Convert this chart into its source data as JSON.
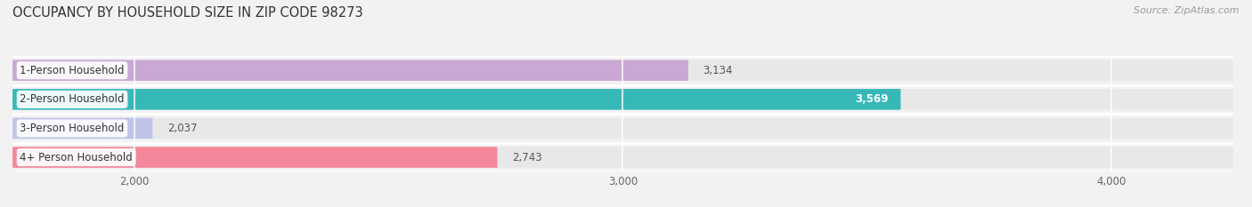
{
  "title": "OCCUPANCY BY HOUSEHOLD SIZE IN ZIP CODE 98273",
  "source": "Source: ZipAtlas.com",
  "categories": [
    "1-Person Household",
    "2-Person Household",
    "3-Person Household",
    "4+ Person Household"
  ],
  "values": [
    3134,
    3569,
    2037,
    2743
  ],
  "bar_colors": [
    "#c9a8d4",
    "#37b8b8",
    "#c0c4e8",
    "#f4879a"
  ],
  "value_labels": [
    "3,134",
    "3,569",
    "2,037",
    "2,743"
  ],
  "value_label_colors": [
    "#555555",
    "#ffffff",
    "#555555",
    "#555555"
  ],
  "value_label_bold": [
    false,
    true,
    false,
    false
  ],
  "xlim": [
    1750,
    4250
  ],
  "xticks": [
    2000,
    3000,
    4000
  ],
  "xtick_labels": [
    "2,000",
    "3,000",
    "4,000"
  ],
  "background_color": "#f2f2f2",
  "row_bg_color": "#e8e8e8",
  "grid_color": "#ffffff",
  "title_fontsize": 10.5,
  "source_fontsize": 8,
  "label_fontsize": 8.5,
  "value_fontsize": 8.5,
  "tick_fontsize": 8.5,
  "bar_height": 0.72
}
